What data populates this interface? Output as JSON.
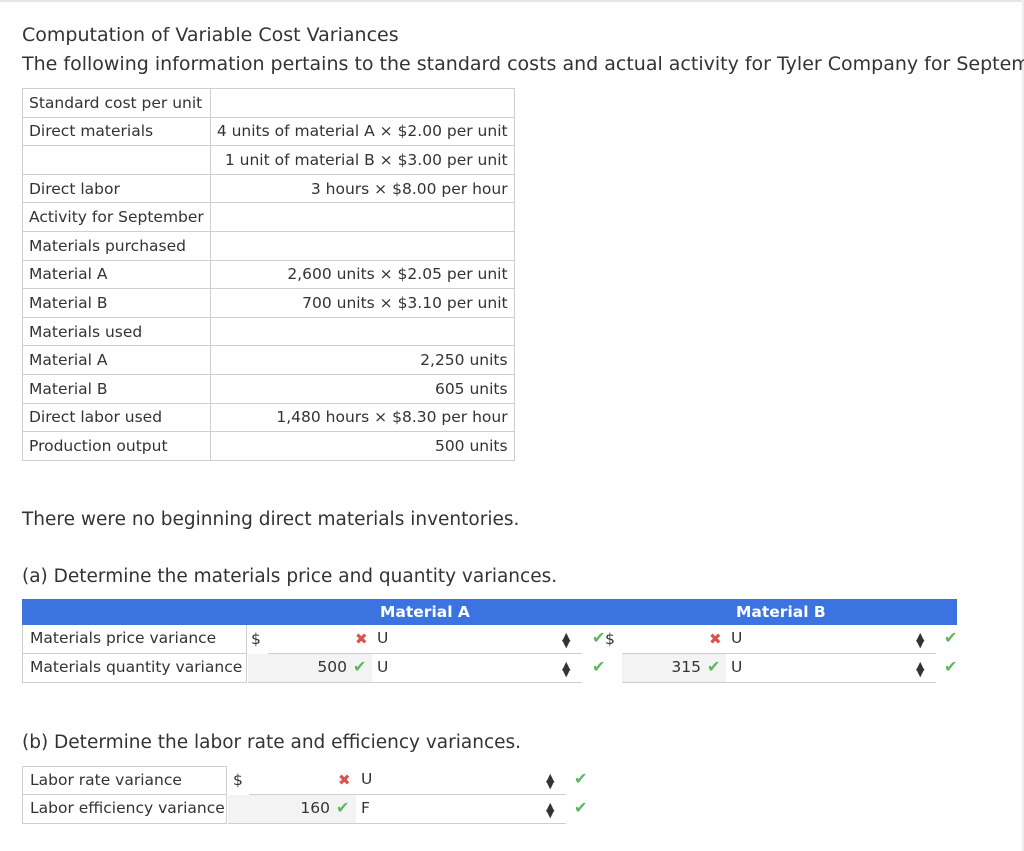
{
  "title": "Computation of Variable Cost Variances",
  "intro": "The following information pertains to the standard costs and actual activity for Tyler Company for September:",
  "info_table": [
    {
      "label": "Standard cost per unit",
      "value": ""
    },
    {
      "label": "Direct materials",
      "value": "4 units of material A × $2.00 per unit"
    },
    {
      "label": "",
      "value": "1 unit of material B × $3.00 per unit"
    },
    {
      "label": "Direct labor",
      "value": "3 hours × $8.00 per hour"
    },
    {
      "label": "Activity for September",
      "value": ""
    },
    {
      "label": "Materials purchased",
      "value": ""
    },
    {
      "label": "Material A",
      "value": "2,600 units × $2.05 per unit"
    },
    {
      "label": "Material B",
      "value": "700 units × $3.10 per unit"
    },
    {
      "label": "Materials used",
      "value": ""
    },
    {
      "label": "Material A",
      "value": "2,250 units"
    },
    {
      "label": "Material B",
      "value": "605 units"
    },
    {
      "label": "Direct labor used",
      "value": "1,480 hours × $8.30 per hour"
    },
    {
      "label": "Production output",
      "value": "500 units"
    }
  ],
  "note": "There were no beginning direct materials inventories.",
  "question_a": "(a) Determine the materials price and quantity variances.",
  "materials": {
    "header_a": "Material A",
    "header_b": "Material B",
    "rows": [
      {
        "label": "Materials price variance",
        "a_currency": "$",
        "a_value": "",
        "a_type": "U",
        "b_currency": "$",
        "b_value": "",
        "b_type": "U"
      },
      {
        "label": "Materials quantity variance",
        "a_currency": "",
        "a_value": "500",
        "a_type": "U",
        "b_currency": "",
        "b_value": "315",
        "b_type": "U"
      }
    ]
  },
  "question_b": "(b) Determine the labor rate and efficiency variances.",
  "labor": {
    "rows": [
      {
        "label": "Labor rate variance",
        "currency": "$",
        "value": "",
        "type": "U"
      },
      {
        "label": "Labor efficiency variance",
        "currency": "",
        "value": "160",
        "type": "F"
      }
    ]
  },
  "icons": {
    "incorrect": "x-mark-icon",
    "correct": "check-mark-icon",
    "select": "up-down-arrows-icon"
  },
  "colors": {
    "header_bg": "#3b74e0",
    "correct": "#5cb85c",
    "incorrect": "#d9534f"
  }
}
